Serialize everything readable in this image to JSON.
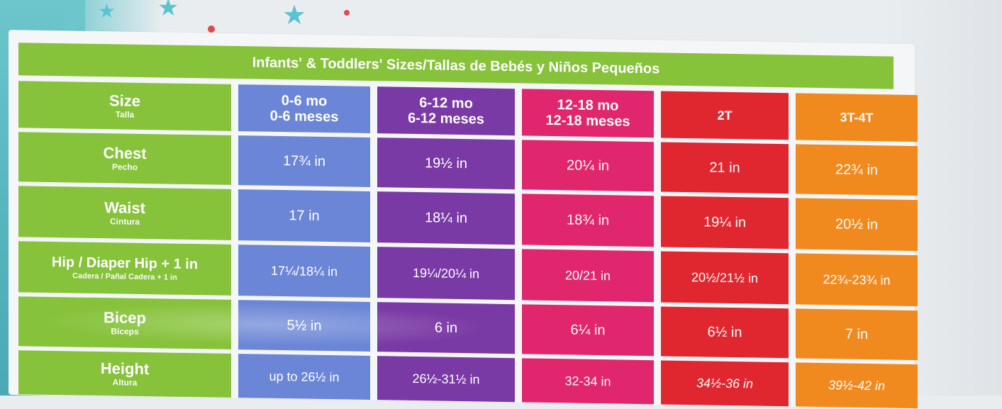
{
  "title": "Infants' & Toddlers' Sizes/Tallas de Bebés y Niños Pequeños",
  "colors": {
    "green": "#86c23a",
    "col_0_6": "#6b86d6",
    "col_6_12": "#7a3aa5",
    "col_12_18": "#e0266c",
    "col_2t": "#e0262f",
    "col_3t_4t": "#f08a1e"
  },
  "rows": [
    {
      "en": "Size",
      "es": "Talla",
      "cells": [
        [
          "0-6 mo",
          "0-6 meses"
        ],
        [
          "6-12 mo",
          "6-12 meses"
        ],
        [
          "12-18 mo",
          "12-18 meses"
        ],
        [
          "2T",
          ""
        ],
        [
          "3T-4T",
          ""
        ]
      ]
    },
    {
      "en": "Chest",
      "es": "Pecho",
      "cells": [
        "17¾ in",
        "19½ in",
        "20¼ in",
        "21 in",
        "22¾ in"
      ]
    },
    {
      "en": "Waist",
      "es": "Cintura",
      "cells": [
        "17 in",
        "18¼ in",
        "18¾ in",
        "19¼ in",
        "20½ in"
      ]
    },
    {
      "en": "Hip / Diaper Hip + 1 in",
      "es": "Cadera / Pañal Cadera + 1 in",
      "cells": [
        "17¼/18¼ in",
        "19¼/20¼ in",
        "20/21 in",
        "20½/21½ in",
        "22¾-23¾ in"
      ]
    },
    {
      "en": "Bicep",
      "es": "Bíceps",
      "cells": [
        "5½ in",
        "6 in",
        "6¼ in",
        "6½ in",
        "7 in"
      ]
    },
    {
      "en": "Height",
      "es": "Altura",
      "cells": [
        "up to 26½ in",
        "26½-31½ in",
        "32-34 in",
        "34½-36 in",
        "39½-42 in"
      ]
    }
  ]
}
